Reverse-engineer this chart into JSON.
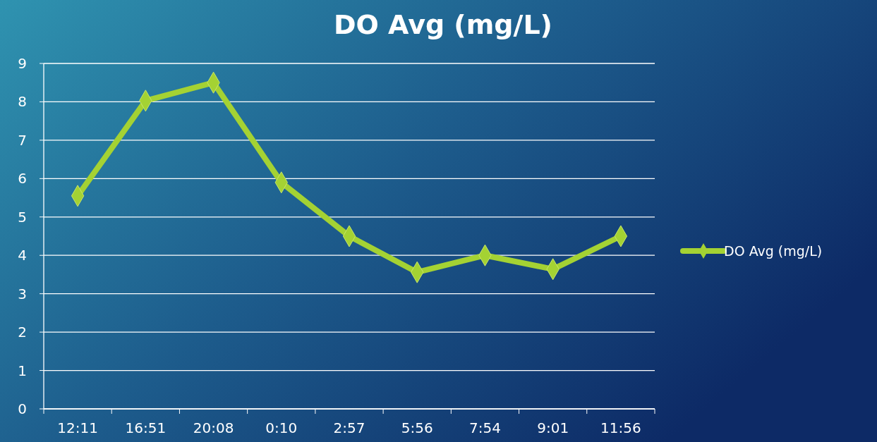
{
  "chart_data": {
    "type": "line",
    "title": "DO Avg (mg/L)",
    "categories": [
      "12:11",
      "16:51",
      "20:08",
      "0:10",
      "2:57",
      "5:56",
      "7:54",
      "9:01",
      "11:56"
    ],
    "series": [
      {
        "name": "DO Avg (mg/L)",
        "color": "#a4d233",
        "values": [
          5.55,
          8.03,
          8.5,
          5.9,
          4.5,
          3.56,
          4.0,
          3.64,
          4.5
        ]
      }
    ],
    "ylim": [
      0,
      9
    ],
    "yticks": [
      0,
      1,
      2,
      3,
      4,
      5,
      6,
      7,
      8,
      9
    ],
    "grid": "y",
    "legend": "right",
    "marker": "diamond",
    "line_style": "solid"
  }
}
